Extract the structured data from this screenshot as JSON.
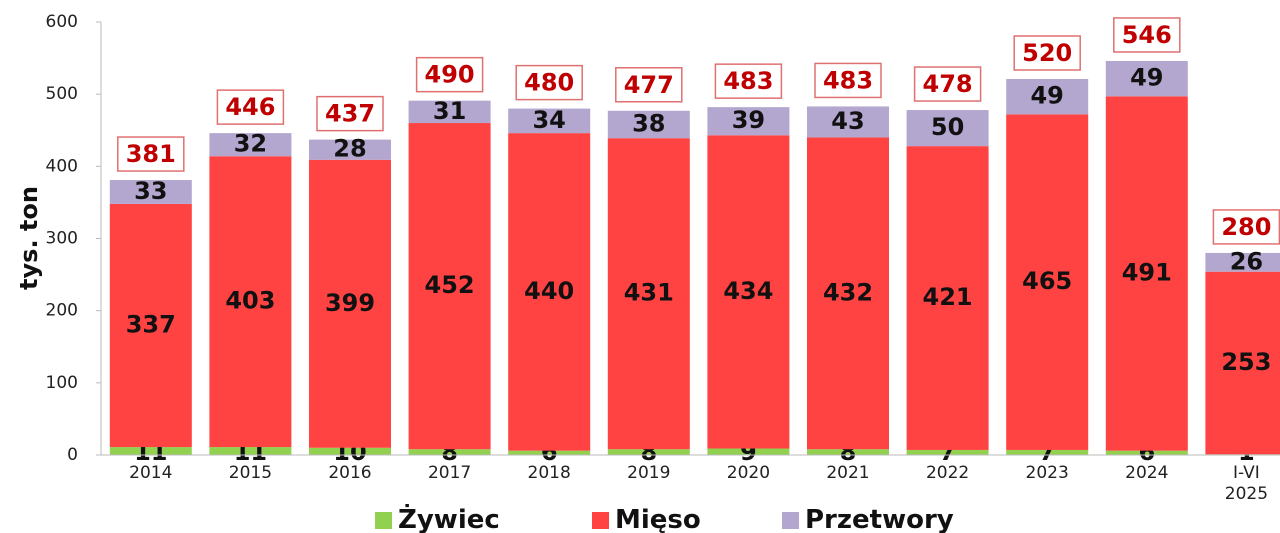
{
  "chart_data": {
    "type": "stacked_bar",
    "y_label": "tys. ton",
    "categories": [
      "2014",
      "2015",
      "2016",
      "2017",
      "2018",
      "2019",
      "2020",
      "2021",
      "2022",
      "2023",
      "2024",
      "I-VI 2025"
    ],
    "series": [
      {
        "name": "Żywiec",
        "color": "#92d050",
        "values": [
          11,
          11,
          10,
          8,
          6,
          8,
          9,
          8,
          7,
          7,
          6,
          1
        ]
      },
      {
        "name": "Mięso",
        "color": "#ff4343",
        "values": [
          337,
          403,
          399,
          452,
          440,
          431,
          434,
          432,
          421,
          465,
          491,
          253
        ]
      },
      {
        "name": "Przetwory",
        "color": "#b3a6cf",
        "values": [
          33,
          32,
          28,
          31,
          34,
          38,
          39,
          43,
          50,
          49,
          49,
          26
        ]
      }
    ],
    "totals": [
      381,
      446,
      437,
      490,
      480,
      477,
      483,
      483,
      478,
      520,
      546,
      280
    ],
    "totals_color": "#c00000",
    "ylim": [
      0,
      600
    ],
    "yticks": [
      0,
      100,
      200,
      300,
      400,
      500,
      600
    ],
    "grid": false
  }
}
